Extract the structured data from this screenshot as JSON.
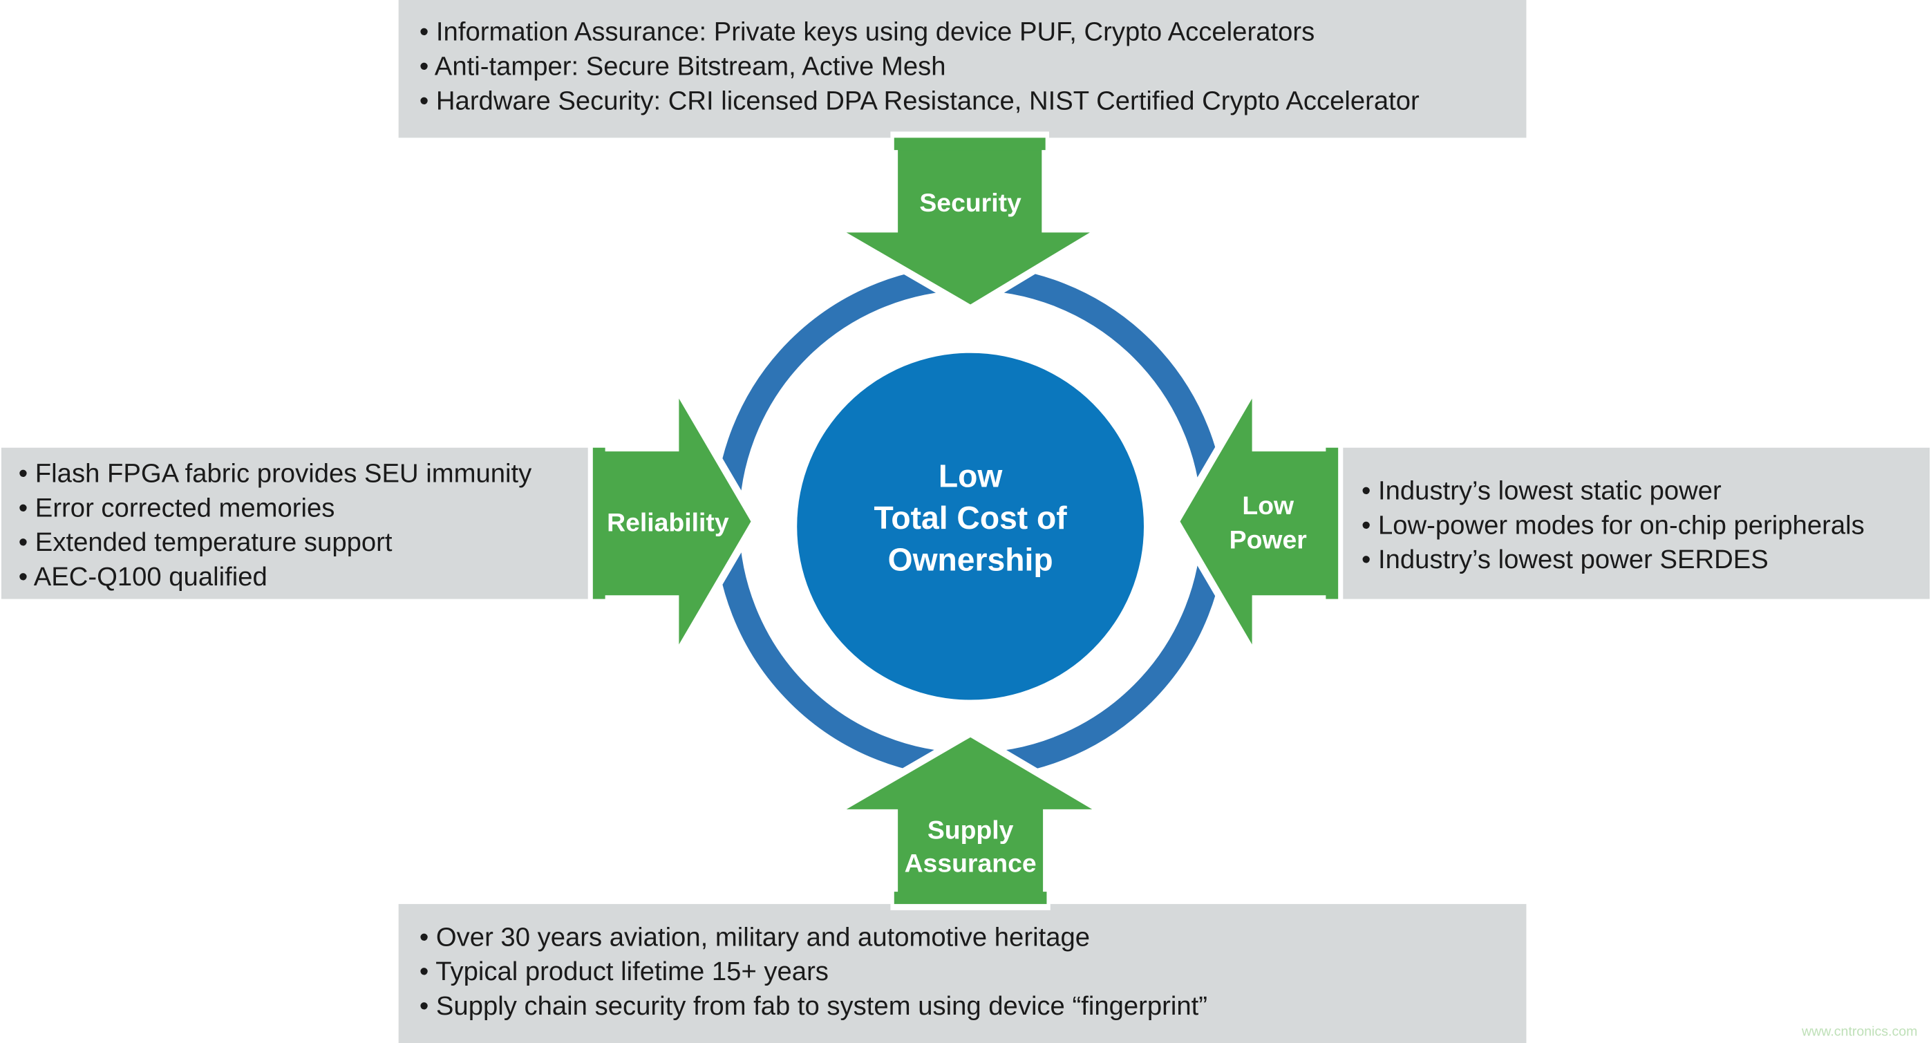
{
  "colors": {
    "box": "#d6d9da",
    "arrow": "#4ba84a",
    "ring": "#2e74b5",
    "center": "#0b77bd"
  },
  "center": {
    "lines": [
      "Low",
      "Total Cost of",
      "Ownership"
    ]
  },
  "security": {
    "label": [
      "Security"
    ],
    "bullets": [
      "• Information Assurance: Private  keys using device PUF, Crypto Accelerators",
      "• Anti-tamper: Secure Bitstream, Active Mesh",
      "• Hardware Security: CRI licensed DPA Resistance, NIST Certified Crypto Accelerator"
    ]
  },
  "reliability": {
    "label": [
      "Reliability"
    ],
    "bullets": [
      "• Flash FPGA fabric provides SEU immunity",
      "• Error corrected memories",
      "• Extended temperature support",
      "• AEC-Q100 qualified"
    ]
  },
  "low_power": {
    "label": [
      "Low",
      "Power"
    ],
    "bullets": [
      "• Industry’s lowest static power",
      "• Low-power modes for on-chip peripherals",
      "• Industry’s lowest power SERDES"
    ]
  },
  "supply": {
    "label": [
      "Supply",
      "Assurance"
    ],
    "bullets": [
      "• Over 30 years aviation, military and automotive heritage",
      "• Typical product lifetime 15+ years",
      "• Supply chain security from fab to system using device “fingerprint”"
    ]
  },
  "watermark": "www.cntronics.com"
}
